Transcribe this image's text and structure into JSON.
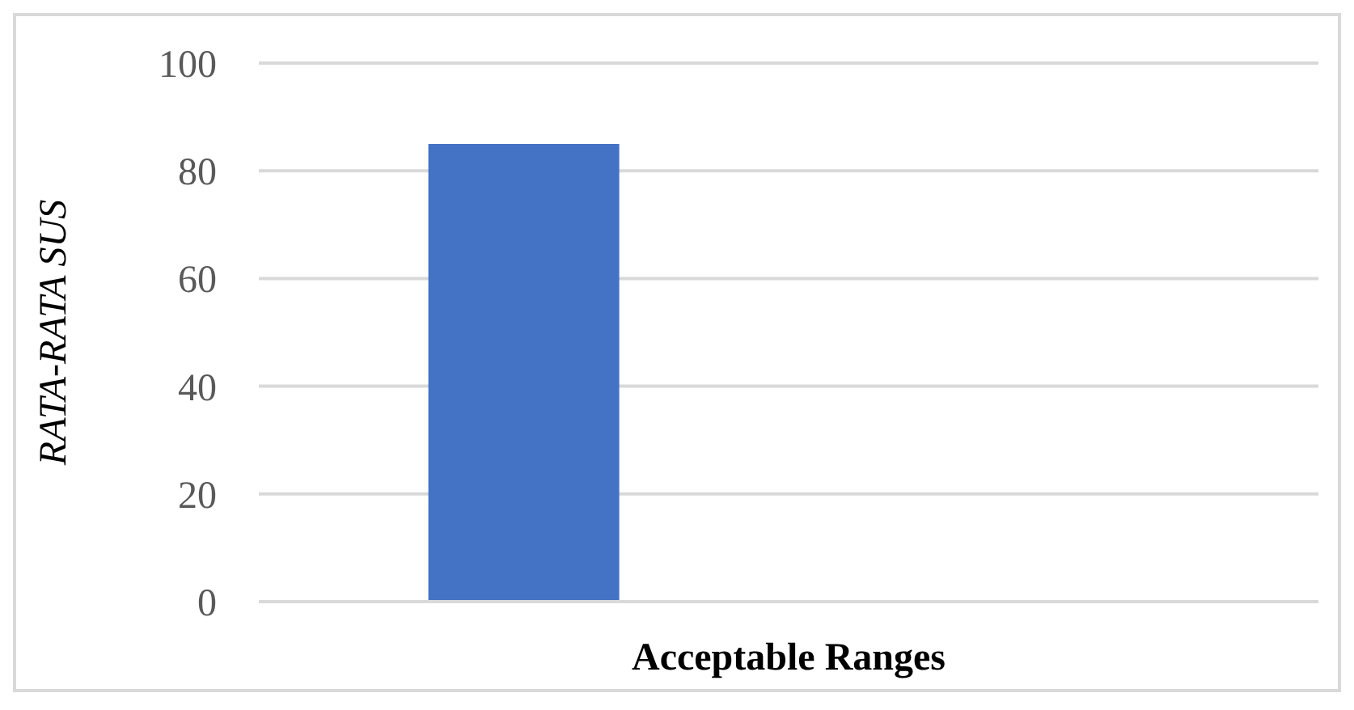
{
  "chart_data": {
    "type": "bar",
    "xlabel": "Acceptable Ranges",
    "ylabel": "RATA-RATA SUS",
    "categories": [
      null,
      null
    ],
    "values": [
      85,
      null
    ],
    "color": "#4472c4",
    "ylim": [
      0,
      100
    ],
    "yticks": [
      0,
      20,
      40,
      60,
      80,
      100
    ],
    "grid": "y"
  }
}
